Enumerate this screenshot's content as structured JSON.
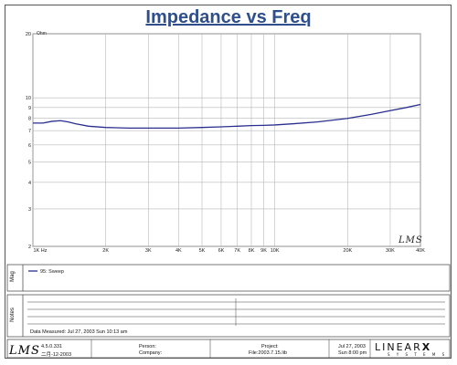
{
  "title": "Impedance vs Freq",
  "yunit": "Ohm",
  "logo_text": "LMS",
  "chart_data": {
    "type": "line",
    "title": "Impedance vs Freq",
    "ylabel": "Ohm",
    "xlabel": "",
    "xscale": "log",
    "yscale": "log",
    "xlim": [
      1000,
      40000
    ],
    "ylim": [
      2,
      20
    ],
    "xtick_labels": [
      {
        "value": 1000,
        "label": "1K Hz"
      },
      {
        "value": 2000,
        "label": "2K"
      },
      {
        "value": 3000,
        "label": "3K"
      },
      {
        "value": 4000,
        "label": "4K"
      },
      {
        "value": 5000,
        "label": "5K"
      },
      {
        "value": 6000,
        "label": "6K"
      },
      {
        "value": 7000,
        "label": "7K"
      },
      {
        "value": 8000,
        "label": "8K"
      },
      {
        "value": 9000,
        "label": "9K"
      },
      {
        "value": 10000,
        "label": "10K"
      },
      {
        "value": 20000,
        "label": "20K"
      },
      {
        "value": 30000,
        "label": "30K"
      },
      {
        "value": 40000,
        "label": "40K"
      }
    ],
    "ytick_labels": [
      {
        "value": 2,
        "label": "2"
      },
      {
        "value": 3,
        "label": "3"
      },
      {
        "value": 4,
        "label": "4"
      },
      {
        "value": 5,
        "label": "5"
      },
      {
        "value": 6,
        "label": "6"
      },
      {
        "value": 7,
        "label": "7"
      },
      {
        "value": 8,
        "label": "8"
      },
      {
        "value": 9,
        "label": "9"
      },
      {
        "value": 10,
        "label": "10"
      },
      {
        "value": 20,
        "label": "20"
      }
    ],
    "grid": true,
    "series": [
      {
        "name": "95: Sweep",
        "color": "#2a2f8f",
        "x": [
          1000,
          1100,
          1200,
          1300,
          1400,
          1500,
          1700,
          2000,
          2500,
          3000,
          4000,
          5000,
          6000,
          7000,
          8000,
          9000,
          10000,
          12000,
          15000,
          20000,
          25000,
          30000,
          35000,
          40000
        ],
        "y": [
          7.6,
          7.6,
          7.75,
          7.8,
          7.7,
          7.55,
          7.35,
          7.25,
          7.2,
          7.2,
          7.2,
          7.25,
          7.3,
          7.35,
          7.4,
          7.42,
          7.45,
          7.55,
          7.7,
          8.0,
          8.35,
          8.7,
          9.0,
          9.3
        ]
      }
    ]
  },
  "legend_label": "95: Sweep",
  "sections": {
    "mag": "Mag",
    "notes": "Notes"
  },
  "measured_text": "Data Measured: Jul 27, 2003  Sun 10:13 am",
  "footer": {
    "version": "4.5.0.331",
    "date_built": "二月-12-2003",
    "person": "Person:",
    "company": "Company:",
    "project": "Project:",
    "file": "File:2003.7.15.lib",
    "date": "Jul 27, 2003",
    "time": "Sun  8:00 pm",
    "brand": "LINEAR",
    "brand_mark": "X",
    "brand_sub": "S Y S T E M S"
  }
}
